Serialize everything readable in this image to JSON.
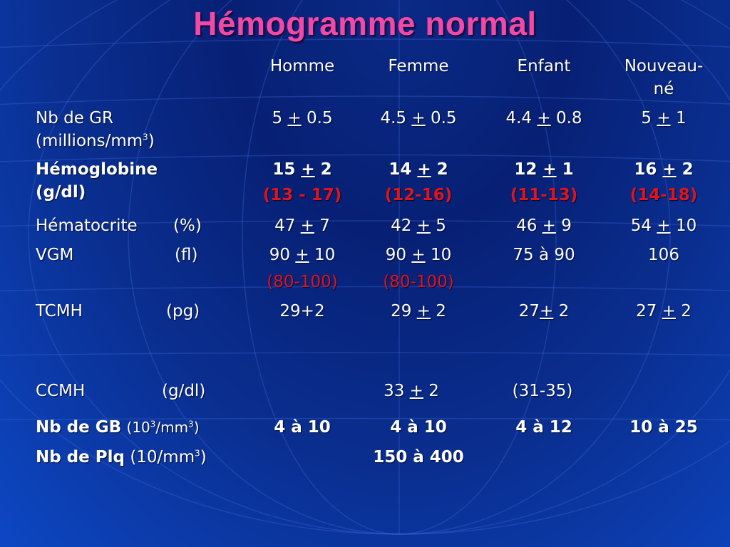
{
  "title": "Hémogramme normal",
  "headers": {
    "homme": "Homme",
    "femme": "Femme",
    "enfant": "Enfant",
    "nouveau_ne_line1": "Nouveau-",
    "nouveau_ne_line2": "né"
  },
  "rows": {
    "gr": {
      "label1": "Nb de GR",
      "label2": "(millions/mm",
      "sup": "3",
      "label2_end": ")",
      "homme": [
        "5 ",
        "+",
        " 0.5"
      ],
      "femme": [
        "4.5 ",
        "+",
        " 0.5"
      ],
      "enfant": [
        "4.4 ",
        "+",
        " 0.8"
      ],
      "nn": [
        "5 ",
        "+",
        " 1"
      ]
    },
    "hb": {
      "label1": "Hémoglobine",
      "label2": "(g/dl)",
      "homme": [
        "15 ",
        "+",
        " 2"
      ],
      "femme": [
        "14 ",
        "+",
        " 2"
      ],
      "enfant": [
        "12 ",
        "+",
        " 1"
      ],
      "nn": [
        "16 ",
        "+",
        " 2"
      ],
      "homme_range": "(13 - 17)",
      "femme_range": "(12-16)",
      "enfant_range": "(11-13)",
      "nn_range": "(14-18)"
    },
    "hte": {
      "label": "Hématocrite",
      "unit": "(%)",
      "homme": [
        "47 ",
        "+",
        " 7"
      ],
      "femme": [
        "42 ",
        "+",
        " 5"
      ],
      "enfant": [
        "46 ",
        "+",
        " 9"
      ],
      "nn": [
        "54 ",
        "+",
        " 10"
      ]
    },
    "vgm": {
      "label": "VGM",
      "unit": "(fl)",
      "homme": [
        "90 ",
        "+",
        " 10"
      ],
      "femme": [
        "90 ",
        "+",
        " 10"
      ],
      "enfant": "75 à 90",
      "nn": "106",
      "homme_range": "(80-100)",
      "femme_range": "(80-100)"
    },
    "tcmh": {
      "label": "TCMH",
      "unit": "(pg)",
      "homme": "29+2",
      "femme": [
        "29 ",
        "+",
        " 2"
      ],
      "enfant": [
        "27",
        "+",
        " 2"
      ],
      "nn": [
        "27 ",
        "+",
        " 2"
      ]
    },
    "ccmh": {
      "label": "CCMH",
      "unit": "(g/dl)",
      "femme": [
        "33 ",
        "+",
        " 2"
      ],
      "enfant": "(31-35)"
    },
    "gb": {
      "label": "Nb de GB",
      "unit_start": "(10",
      "sup1": "3",
      "unit_mid": "/mm",
      "sup2": "3",
      "unit_end": ")",
      "homme": "4 à 10",
      "femme": "4 à 10",
      "enfant": "4 à 12",
      "nn": "10 à 25"
    },
    "plq": {
      "label": "Nb de Plq",
      "unit_start": "(10/mm",
      "sup": "3",
      "unit_end": ")",
      "femme": "150 à 400"
    }
  },
  "colors": {
    "title": "#f04aa6",
    "range": "#e0141c",
    "text": "#ffffff",
    "background": "#0a2e8f"
  }
}
